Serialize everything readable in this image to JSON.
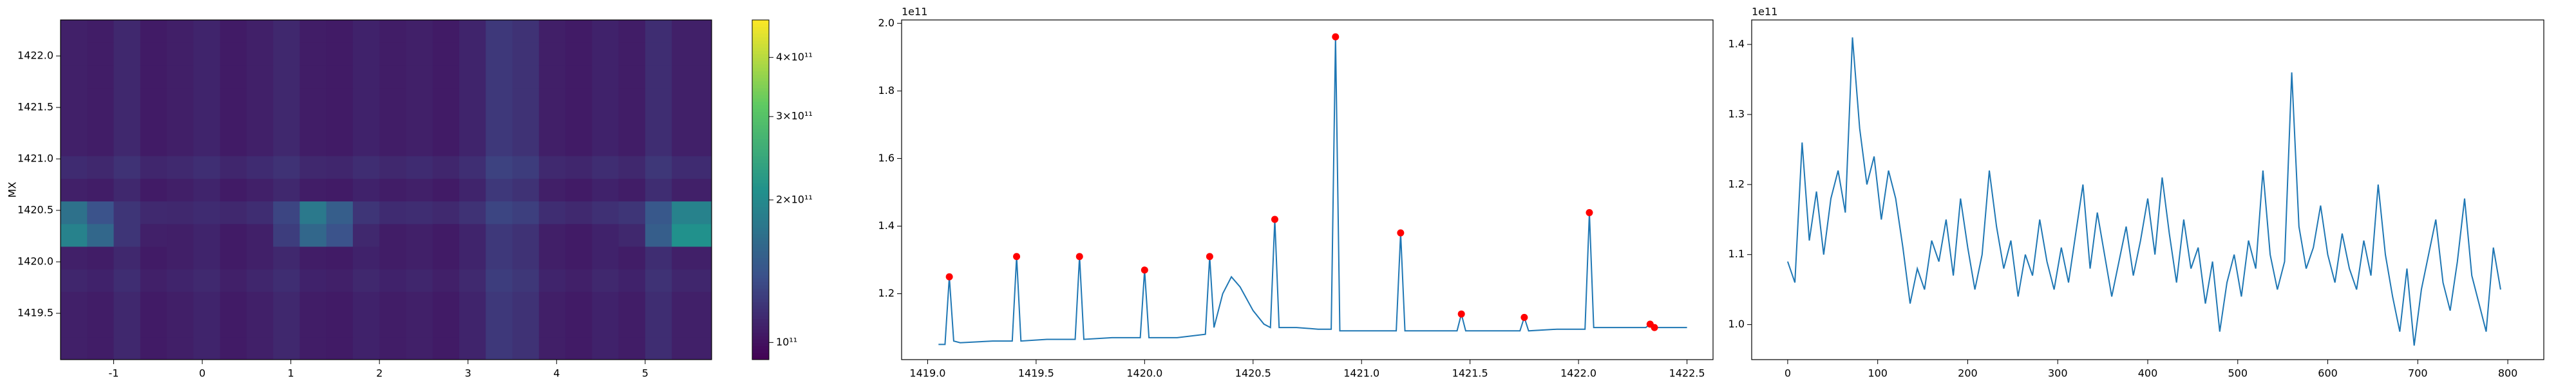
{
  "chart_data": [
    {
      "type": "heatmap",
      "ylabel": "MX",
      "cmap": "viridis",
      "xlim": [
        -1.6,
        5.75
      ],
      "xticks": [
        -1,
        0,
        1,
        2,
        3,
        4,
        5
      ],
      "ylim": [
        1419.05,
        1422.35
      ],
      "yticks": [
        1419.5,
        {
          "value": 1420,
          "label": "1420.0"
        },
        1420.5,
        {
          "value": 1421,
          "label": "1421.0"
        },
        1421.5,
        {
          "value": 1422,
          "label": "1422.0"
        }
      ],
      "x": [
        -1.45,
        -1.15,
        -0.85,
        -0.55,
        -0.25,
        0.05,
        0.35,
        0.65,
        0.95,
        1.25,
        1.55,
        1.85,
        2.15,
        2.45,
        2.75,
        3.05,
        3.35,
        3.65,
        3.95,
        4.25,
        4.55,
        4.85,
        5.15,
        5.45
      ],
      "y": [
        1419.16,
        1419.38,
        1419.6,
        1419.82,
        1420.04,
        1420.26,
        1420.48,
        1420.7,
        1420.92,
        1421.14,
        1421.36,
        1421.58,
        1421.8,
        1422.02,
        1422.24
      ],
      "z": [
        [
          108000000000.0,
          106000000000.0,
          112000000000.0,
          105000000000.0,
          107000000000.0,
          110000000000.0,
          105000000000.0,
          108000000000.0,
          112000000000.0,
          106000000000.0,
          105000000000.0,
          109000000000.0,
          106000000000.0,
          108000000000.0,
          105000000000.0,
          110000000000.0,
          122000000000.0,
          118000000000.0,
          107000000000.0,
          105000000000.0,
          109000000000.0,
          106000000000.0,
          115000000000.0,
          108000000000.0
        ],
        [
          108000000000.0,
          106000000000.0,
          112000000000.0,
          105000000000.0,
          107000000000.0,
          110000000000.0,
          105000000000.0,
          108000000000.0,
          112000000000.0,
          106000000000.0,
          105000000000.0,
          109000000000.0,
          106000000000.0,
          108000000000.0,
          105000000000.0,
          110000000000.0,
          122000000000.0,
          118000000000.0,
          107000000000.0,
          105000000000.0,
          109000000000.0,
          106000000000.0,
          115000000000.0,
          108000000000.0
        ],
        [
          108000000000.0,
          106000000000.0,
          112000000000.0,
          105000000000.0,
          107000000000.0,
          110000000000.0,
          105000000000.0,
          108000000000.0,
          112000000000.0,
          106000000000.0,
          105000000000.0,
          109000000000.0,
          106000000000.0,
          108000000000.0,
          105000000000.0,
          110000000000.0,
          122000000000.0,
          118000000000.0,
          107000000000.0,
          105000000000.0,
          109000000000.0,
          106000000000.0,
          115000000000.0,
          108000000000.0
        ],
        [
          111000000000.0,
          109000000000.0,
          115000000000.0,
          108000000000.0,
          110000000000.0,
          113000000000.0,
          108000000000.0,
          111000000000.0,
          115000000000.0,
          109000000000.0,
          108000000000.0,
          112000000000.0,
          109000000000.0,
          111000000000.0,
          108000000000.0,
          113000000000.0,
          125000000000.0,
          121000000000.0,
          110000000000.0,
          108000000000.0,
          112000000000.0,
          109000000000.0,
          118000000000.0,
          111000000000.0
        ],
        [
          108000000000.0,
          106000000000.0,
          112000000000.0,
          105000000000.0,
          107000000000.0,
          110000000000.0,
          105000000000.0,
          108000000000.0,
          112000000000.0,
          106000000000.0,
          105000000000.0,
          109000000000.0,
          106000000000.0,
          108000000000.0,
          105000000000.0,
          110000000000.0,
          122000000000.0,
          118000000000.0,
          107000000000.0,
          105000000000.0,
          109000000000.0,
          106000000000.0,
          115000000000.0,
          108000000000.0
        ],
        [
          190000000000.0,
          160000000000.0,
          120000000000.0,
          108000000000.0,
          107000000000.0,
          110000000000.0,
          105000000000.0,
          108000000000.0,
          125000000000.0,
          160000000000.0,
          140000000000.0,
          112000000000.0,
          106000000000.0,
          108000000000.0,
          105000000000.0,
          110000000000.0,
          122000000000.0,
          118000000000.0,
          107000000000.0,
          105000000000.0,
          109000000000.0,
          112000000000.0,
          150000000000.0,
          210000000000.0
        ],
        [
          170000000000.0,
          140000000000.0,
          120000000000.0,
          113000000000.0,
          112000000000.0,
          114000000000.0,
          112000000000.0,
          115000000000.0,
          130000000000.0,
          180000000000.0,
          150000000000.0,
          120000000000.0,
          114000000000.0,
          115000000000.0,
          113000000000.0,
          118000000000.0,
          130000000000.0,
          126000000000.0,
          115000000000.0,
          113000000000.0,
          117000000000.0,
          120000000000.0,
          145000000000.0,
          190000000000.0
        ],
        [
          108000000000.0,
          106000000000.0,
          112000000000.0,
          105000000000.0,
          107000000000.0,
          110000000000.0,
          105000000000.0,
          108000000000.0,
          112000000000.0,
          106000000000.0,
          105000000000.0,
          109000000000.0,
          106000000000.0,
          108000000000.0,
          105000000000.0,
          110000000000.0,
          122000000000.0,
          118000000000.0,
          107000000000.0,
          105000000000.0,
          109000000000.0,
          106000000000.0,
          115000000000.0,
          108000000000.0
        ],
        [
          114000000000.0,
          112000000000.0,
          118000000000.0,
          111000000000.0,
          113000000000.0,
          116000000000.0,
          111000000000.0,
          114000000000.0,
          118000000000.0,
          112000000000.0,
          111000000000.0,
          115000000000.0,
          112000000000.0,
          114000000000.0,
          111000000000.0,
          116000000000.0,
          128000000000.0,
          124000000000.0,
          113000000000.0,
          111000000000.0,
          115000000000.0,
          112000000000.0,
          121000000000.0,
          114000000000.0
        ],
        [
          108000000000.0,
          106000000000.0,
          112000000000.0,
          105000000000.0,
          107000000000.0,
          110000000000.0,
          105000000000.0,
          108000000000.0,
          112000000000.0,
          106000000000.0,
          105000000000.0,
          109000000000.0,
          106000000000.0,
          108000000000.0,
          105000000000.0,
          110000000000.0,
          122000000000.0,
          118000000000.0,
          107000000000.0,
          105000000000.0,
          109000000000.0,
          106000000000.0,
          115000000000.0,
          108000000000.0
        ],
        [
          108000000000.0,
          106000000000.0,
          112000000000.0,
          105000000000.0,
          107000000000.0,
          110000000000.0,
          105000000000.0,
          108000000000.0,
          112000000000.0,
          106000000000.0,
          105000000000.0,
          109000000000.0,
          106000000000.0,
          108000000000.0,
          105000000000.0,
          110000000000.0,
          122000000000.0,
          118000000000.0,
          107000000000.0,
          105000000000.0,
          109000000000.0,
          106000000000.0,
          115000000000.0,
          108000000000.0
        ],
        [
          108000000000.0,
          106000000000.0,
          112000000000.0,
          105000000000.0,
          107000000000.0,
          110000000000.0,
          105000000000.0,
          108000000000.0,
          112000000000.0,
          106000000000.0,
          105000000000.0,
          109000000000.0,
          106000000000.0,
          108000000000.0,
          105000000000.0,
          110000000000.0,
          122000000000.0,
          118000000000.0,
          107000000000.0,
          105000000000.0,
          109000000000.0,
          106000000000.0,
          115000000000.0,
          108000000000.0
        ],
        [
          108000000000.0,
          106000000000.0,
          112000000000.0,
          105000000000.0,
          107000000000.0,
          110000000000.0,
          105000000000.0,
          108000000000.0,
          112000000000.0,
          106000000000.0,
          105000000000.0,
          109000000000.0,
          106000000000.0,
          108000000000.0,
          105000000000.0,
          110000000000.0,
          122000000000.0,
          118000000000.0,
          107000000000.0,
          105000000000.0,
          109000000000.0,
          106000000000.0,
          115000000000.0,
          108000000000.0
        ],
        [
          108000000000.0,
          106000000000.0,
          112000000000.0,
          105000000000.0,
          107000000000.0,
          110000000000.0,
          105000000000.0,
          108000000000.0,
          112000000000.0,
          106000000000.0,
          105000000000.0,
          109000000000.0,
          106000000000.0,
          108000000000.0,
          105000000000.0,
          110000000000.0,
          122000000000.0,
          118000000000.0,
          107000000000.0,
          105000000000.0,
          109000000000.0,
          106000000000.0,
          115000000000.0,
          108000000000.0
        ],
        [
          108000000000.0,
          106000000000.0,
          112000000000.0,
          105000000000.0,
          107000000000.0,
          110000000000.0,
          105000000000.0,
          108000000000.0,
          112000000000.0,
          106000000000.0,
          105000000000.0,
          109000000000.0,
          106000000000.0,
          108000000000.0,
          105000000000.0,
          110000000000.0,
          122000000000.0,
          118000000000.0,
          107000000000.0,
          105000000000.0,
          109000000000.0,
          106000000000.0,
          115000000000.0,
          108000000000.0
        ]
      ],
      "colorbar": {
        "scale": "log",
        "lim": [
          92000000000.0,
          480000000000.0
        ],
        "ticks": [
          {
            "value": 100000000000.0,
            "label": "10¹¹"
          },
          {
            "value": 200000000000.0,
            "label": "2×10¹¹"
          },
          {
            "value": 300000000000.0,
            "label": "3×10¹¹"
          },
          {
            "value": 400000000000.0,
            "label": "4×10¹¹"
          }
        ]
      }
    },
    {
      "type": "line",
      "offset_text": "1e11",
      "xlim": [
        1418.88,
        1422.62
      ],
      "xticks": [
        {
          "value": 1419,
          "label": "1419.0"
        },
        1419.5,
        {
          "value": 1420,
          "label": "1420.0"
        },
        1420.5,
        {
          "value": 1421,
          "label": "1421.0"
        },
        1421.5,
        {
          "value": 1422,
          "label": "1422.0"
        },
        1422.5
      ],
      "ylim": [
        1.005,
        2.01
      ],
      "yticks": [
        1.2,
        1.4,
        1.6,
        1.8,
        {
          "value": 2,
          "label": "2.0"
        }
      ],
      "series": [
        {
          "color": "#1f77b4",
          "x": [
            1419.05,
            1419.08,
            1419.1,
            1419.12,
            1419.15,
            1419.3,
            1419.39,
            1419.41,
            1419.43,
            1419.55,
            1419.68,
            1419.7,
            1419.72,
            1419.85,
            1419.98,
            1420.0,
            1420.02,
            1420.15,
            1420.28,
            1420.3,
            1420.32,
            1420.36,
            1420.4,
            1420.44,
            1420.5,
            1420.55,
            1420.58,
            1420.6,
            1420.62,
            1420.7,
            1420.8,
            1420.86,
            1420.88,
            1420.9,
            1421.0,
            1421.1,
            1421.16,
            1421.18,
            1421.2,
            1421.35,
            1421.44,
            1421.46,
            1421.48,
            1421.6,
            1421.73,
            1421.75,
            1421.77,
            1421.9,
            1422.03,
            1422.05,
            1422.07,
            1422.2,
            1422.31,
            1422.33,
            1422.35,
            1422.5
          ],
          "values": [
            1.05,
            1.05,
            1.25,
            1.06,
            1.055,
            1.06,
            1.06,
            1.31,
            1.06,
            1.065,
            1.065,
            1.31,
            1.065,
            1.07,
            1.07,
            1.27,
            1.07,
            1.07,
            1.08,
            1.31,
            1.1,
            1.2,
            1.25,
            1.22,
            1.15,
            1.11,
            1.1,
            1.42,
            1.1,
            1.1,
            1.095,
            1.095,
            1.96,
            1.09,
            1.09,
            1.09,
            1.09,
            1.38,
            1.09,
            1.09,
            1.09,
            1.14,
            1.09,
            1.09,
            1.09,
            1.13,
            1.09,
            1.095,
            1.095,
            1.44,
            1.1,
            1.1,
            1.1,
            1.11,
            1.1,
            1.1
          ]
        },
        {
          "color": "#ff0000",
          "marker": "o",
          "x": [
            1419.1,
            1419.41,
            1419.7,
            1420.0,
            1420.3,
            1420.6,
            1420.88,
            1421.18,
            1421.46,
            1421.75,
            1422.05,
            1422.33,
            1422.35
          ],
          "values": [
            1.25,
            1.31,
            1.31,
            1.27,
            1.31,
            1.42,
            1.96,
            1.38,
            1.14,
            1.13,
            1.44,
            1.11,
            1.1
          ]
        }
      ]
    },
    {
      "type": "line",
      "offset_text": "1e11",
      "xlim": [
        -40,
        840
      ],
      "xticks": [
        0,
        100,
        200,
        300,
        400,
        500,
        600,
        700,
        800
      ],
      "ylim": [
        0.95,
        1.435
      ],
      "yticks": [
        {
          "value": 1,
          "label": "1.0"
        },
        1.1,
        1.2,
        1.3,
        1.4
      ],
      "series": [
        {
          "color": "#1f77b4",
          "x": [
            0,
            8,
            16,
            24,
            32,
            40,
            48,
            56,
            64,
            72,
            80,
            88,
            96,
            104,
            112,
            120,
            128,
            136,
            144,
            152,
            160,
            168,
            176,
            184,
            192,
            200,
            208,
            216,
            224,
            232,
            240,
            248,
            256,
            264,
            272,
            280,
            288,
            296,
            304,
            312,
            320,
            328,
            336,
            344,
            352,
            360,
            368,
            376,
            384,
            392,
            400,
            408,
            416,
            424,
            432,
            440,
            448,
            456,
            464,
            472,
            480,
            488,
            496,
            504,
            512,
            520,
            528,
            536,
            544,
            552,
            560,
            568,
            576,
            584,
            592,
            600,
            608,
            616,
            624,
            632,
            640,
            648,
            656,
            664,
            672,
            680,
            688,
            696,
            704,
            712,
            720,
            728,
            736,
            744,
            752,
            760,
            768,
            776,
            784,
            792
          ],
          "values": [
            1.09,
            1.06,
            1.26,
            1.12,
            1.19,
            1.1,
            1.18,
            1.22,
            1.16,
            1.41,
            1.28,
            1.2,
            1.24,
            1.15,
            1.22,
            1.18,
            1.11,
            1.03,
            1.08,
            1.05,
            1.12,
            1.09,
            1.15,
            1.07,
            1.18,
            1.11,
            1.05,
            1.1,
            1.22,
            1.14,
            1.08,
            1.12,
            1.04,
            1.1,
            1.07,
            1.15,
            1.09,
            1.05,
            1.11,
            1.06,
            1.13,
            1.2,
            1.08,
            1.16,
            1.1,
            1.04,
            1.09,
            1.14,
            1.07,
            1.12,
            1.18,
            1.1,
            1.21,
            1.13,
            1.06,
            1.15,
            1.08,
            1.11,
            1.03,
            1.09,
            0.99,
            1.06,
            1.1,
            1.04,
            1.12,
            1.08,
            1.22,
            1.1,
            1.05,
            1.09,
            1.36,
            1.14,
            1.08,
            1.11,
            1.17,
            1.1,
            1.06,
            1.13,
            1.08,
            1.05,
            1.12,
            1.07,
            1.2,
            1.1,
            1.04,
            0.99,
            1.08,
            0.97,
            1.05,
            1.1,
            1.15,
            1.06,
            1.02,
            1.09,
            1.18,
            1.07,
            1.03,
            0.99,
            1.11,
            1.05
          ]
        }
      ]
    }
  ]
}
